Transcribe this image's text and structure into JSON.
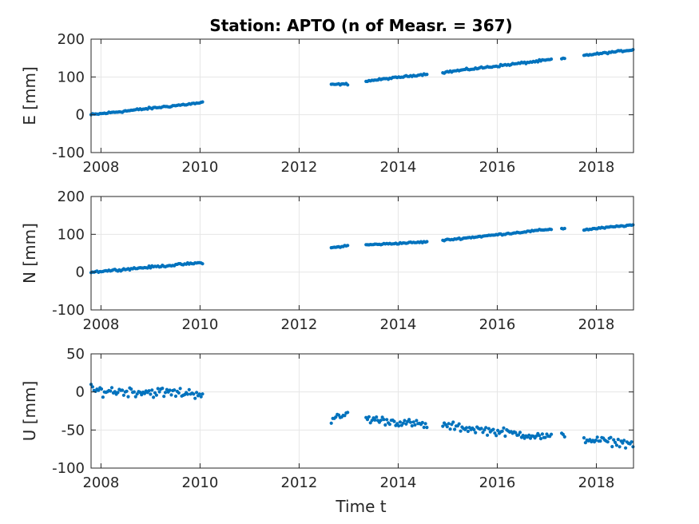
{
  "chart_data": {
    "type": "scatter",
    "title": "Station: APTO (n of Measr. = 367)",
    "xlabel": "Time t",
    "marker_color": "#0072BD",
    "grid": true,
    "panels": [
      {
        "ylabel": "E [mm]",
        "ylim": [
          -100,
          200
        ],
        "yticks": [
          -100,
          0,
          100,
          200
        ],
        "xlim": [
          2007.8,
          2018.75
        ],
        "xticks": [
          2008,
          2010,
          2012,
          2014,
          2016,
          2018
        ],
        "segments": [
          {
            "t0": 2007.8,
            "t1": 2010.05,
            "v0": 0,
            "v1": 32,
            "noise": 2
          },
          {
            "t0": 2012.65,
            "t1": 2012.98,
            "v0": 80,
            "v1": 81,
            "noise": 1.5
          },
          {
            "t0": 2013.35,
            "t1": 2014.6,
            "v0": 89,
            "v1": 108,
            "noise": 1.5
          },
          {
            "t0": 2014.9,
            "t1": 2017.1,
            "v0": 112,
            "v1": 146,
            "noise": 2
          },
          {
            "t0": 2017.3,
            "t1": 2017.38,
            "v0": 148,
            "v1": 149,
            "noise": 1
          },
          {
            "t0": 2017.75,
            "t1": 2018.75,
            "v0": 157,
            "v1": 172,
            "noise": 1.5
          }
        ]
      },
      {
        "ylabel": "N [mm]",
        "ylim": [
          -100,
          200
        ],
        "yticks": [
          -100,
          0,
          100,
          200
        ],
        "xlim": [
          2007.8,
          2018.75
        ],
        "xticks": [
          2008,
          2010,
          2012,
          2014,
          2016,
          2018
        ],
        "segments": [
          {
            "t0": 2007.8,
            "t1": 2010.05,
            "v0": 0,
            "v1": 25,
            "noise": 2
          },
          {
            "t0": 2012.65,
            "t1": 2012.98,
            "v0": 64,
            "v1": 70,
            "noise": 1.5
          },
          {
            "t0": 2013.35,
            "t1": 2014.6,
            "v0": 72,
            "v1": 80,
            "noise": 1.5
          },
          {
            "t0": 2014.9,
            "t1": 2017.1,
            "v0": 84,
            "v1": 114,
            "noise": 1.5
          },
          {
            "t0": 2017.3,
            "t1": 2017.38,
            "v0": 115,
            "v1": 115,
            "noise": 1
          },
          {
            "t0": 2017.75,
            "t1": 2018.75,
            "v0": 112,
            "v1": 125,
            "noise": 1.5
          }
        ]
      },
      {
        "ylabel": "U [mm]",
        "ylim": [
          -100,
          50
        ],
        "yticks": [
          -100,
          -50,
          0,
          50
        ],
        "xlim": [
          2007.8,
          2018.75
        ],
        "xticks": [
          2008,
          2010,
          2012,
          2014,
          2016,
          2018
        ],
        "segments": [
          {
            "t0": 2007.8,
            "t1": 2010.05,
            "v0": 2,
            "v1": -2,
            "noise": 5
          },
          {
            "t0": 2012.65,
            "t1": 2012.98,
            "v0": -38,
            "v1": -28,
            "noise": 4
          },
          {
            "t0": 2013.35,
            "t1": 2014.6,
            "v0": -35,
            "v1": -44,
            "noise": 4
          },
          {
            "t0": 2014.9,
            "t1": 2017.1,
            "v0": -44,
            "v1": -60,
            "noise": 4
          },
          {
            "t0": 2017.3,
            "t1": 2017.38,
            "v0": -56,
            "v1": -57,
            "noise": 2
          },
          {
            "t0": 2017.75,
            "t1": 2018.75,
            "v0": -62,
            "v1": -68,
            "noise": 4
          }
        ]
      }
    ]
  }
}
